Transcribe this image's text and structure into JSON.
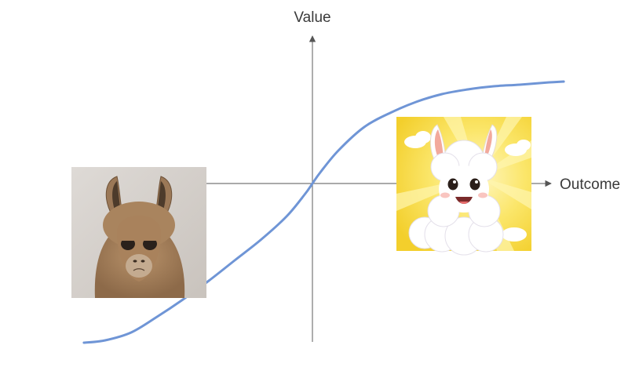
{
  "chart_data": {
    "type": "line",
    "title": "",
    "xlabel": "Outcome",
    "ylabel": "Value",
    "xlim": [
      -1,
      1
    ],
    "ylim": [
      -1,
      1
    ],
    "grid": false,
    "legend": "none",
    "axes_through_origin": true,
    "series": [
      {
        "color": "#6f95d6",
        "points": [
          [
            -0.882,
            -1.015
          ],
          [
            -0.8,
            -1.0
          ],
          [
            -0.7,
            -0.95
          ],
          [
            -0.6,
            -0.85
          ],
          [
            -0.5,
            -0.74
          ],
          [
            -0.4,
            -0.62
          ],
          [
            -0.3,
            -0.49
          ],
          [
            -0.2,
            -0.36
          ],
          [
            -0.1,
            -0.21
          ],
          [
            -0.03,
            -0.07
          ],
          [
            0.0,
            0.0
          ],
          [
            0.03,
            0.07
          ],
          [
            0.1,
            0.21
          ],
          [
            0.2,
            0.36
          ],
          [
            0.3,
            0.45
          ],
          [
            0.4,
            0.52
          ],
          [
            0.5,
            0.57
          ],
          [
            0.6,
            0.6
          ],
          [
            0.7,
            0.62
          ],
          [
            0.8,
            0.63
          ],
          [
            0.9,
            0.643
          ],
          [
            0.97,
            0.65
          ]
        ]
      }
    ],
    "images": [
      {
        "name": "sad-llama",
        "mood": "sad"
      },
      {
        "name": "happy-llama",
        "mood": "happy"
      }
    ]
  }
}
